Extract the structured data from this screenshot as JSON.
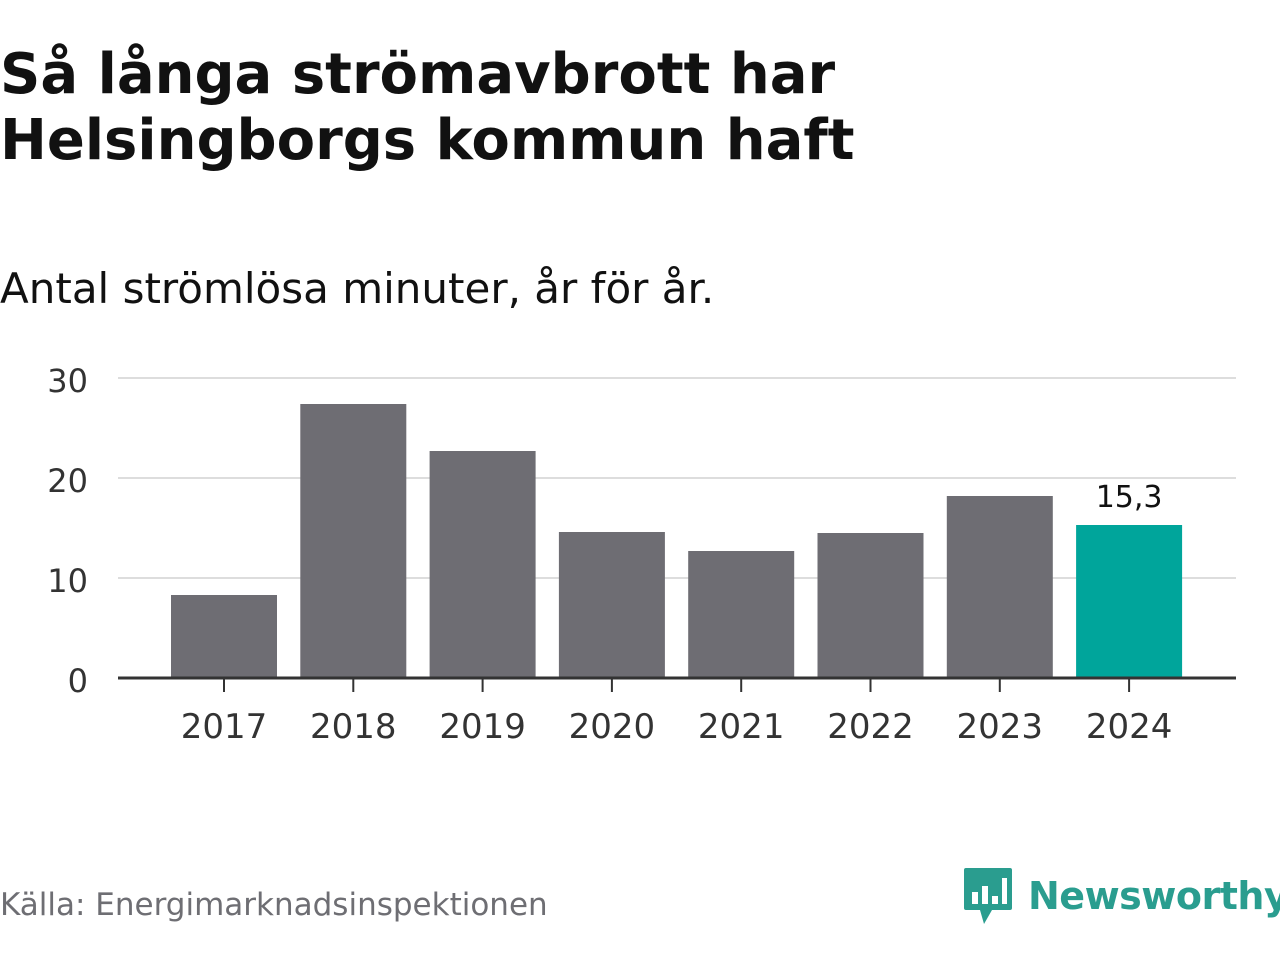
{
  "header": {
    "title": "Så långa strömavbrott har Helsingborgs kommun haft",
    "subtitle": "Antal strömlösa minuter, år för år."
  },
  "footer": {
    "source": "Källa: Energimarknadsinspektionen",
    "brand": "Newsworthy",
    "brand_icon": "newsworthy-logo-icon"
  },
  "colors": {
    "bar": "#6e6d73",
    "highlight": "#00a59b",
    "grid": "#dddddd",
    "axis": "#333333",
    "text": "#111111",
    "muted": "#6e6e73",
    "brand": "#2a9d8f"
  },
  "chart_data": {
    "type": "bar",
    "categories": [
      "2017",
      "2018",
      "2019",
      "2020",
      "2021",
      "2022",
      "2023",
      "2024"
    ],
    "values": [
      8.3,
      27.4,
      22.7,
      14.6,
      12.7,
      14.5,
      18.2,
      15.3
    ],
    "highlight_index": 7,
    "data_labels": [
      {
        "index": 7,
        "text": "15,3"
      }
    ],
    "ylim": [
      0,
      30
    ],
    "yticks": [
      0,
      10,
      20,
      30
    ],
    "xlabel": "",
    "ylabel": "",
    "grid": true,
    "legend": "none"
  }
}
